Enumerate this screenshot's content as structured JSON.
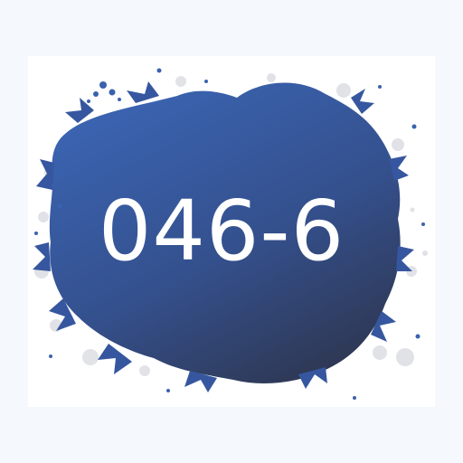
{
  "label": {
    "text": "046-6"
  },
  "colors": {
    "page_background": "#f5f8fc",
    "card_background": "#ffffff",
    "paint_top": "#3b64b1",
    "paint_bottom": "#2f3a58",
    "text": "#ffffff"
  }
}
